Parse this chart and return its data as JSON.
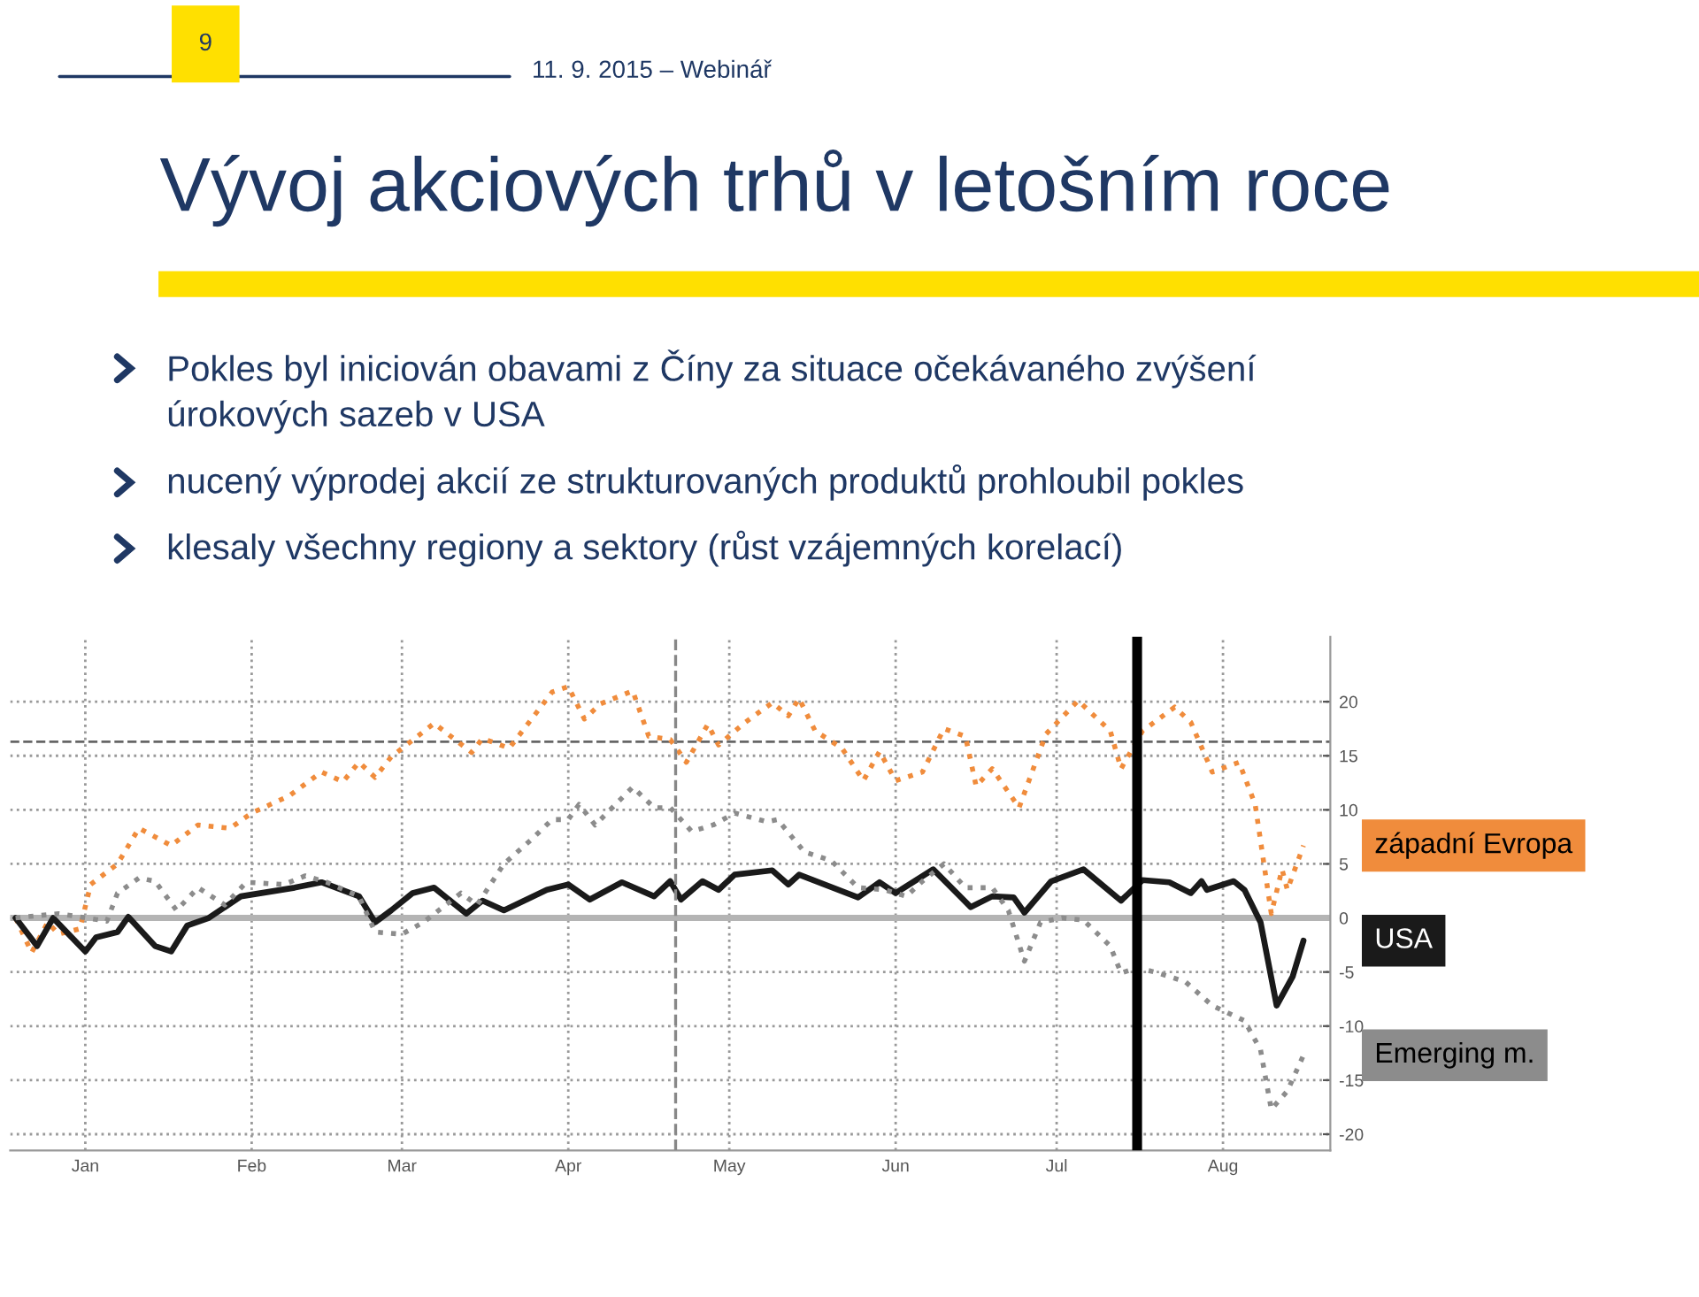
{
  "chart_data": {
    "type": "line",
    "title": "Vývoj akciových trhů v letošním roce",
    "annotations": [
      "9",
      "11. 9. 2015 – Webinář",
      "Pokles byl iniciován obavami z Číny za situace očekávaného zvýšení\núrokových sazeb v USA",
      "nucený výprodej akcií ze strukturovaných produktů prohloubil pokles",
      "klesaly všechny regiony a sektory (růst vzájemných korelací)"
    ],
    "series": [
      {
        "name": "západní Evropa",
        "color": "#f08c3c",
        "line_style": "dotted",
        "x": [
          "2015-01-02",
          "2015-01-05",
          "2015-01-08",
          "2015-01-10",
          "2015-01-14",
          "2015-01-16",
          "2015-01-21",
          "2015-01-25",
          "2015-01-31",
          "2015-02-05",
          "2015-02-11",
          "2015-02-15",
          "2015-02-22",
          "2015-02-28",
          "2015-03-04",
          "2015-03-07",
          "2015-03-10",
          "2015-03-13",
          "2015-03-21",
          "2015-03-28",
          "2015-03-30",
          "2015-04-04",
          "2015-04-12",
          "2015-04-15",
          "2015-04-18",
          "2015-04-21",
          "2015-04-27",
          "2015-04-30",
          "2015-05-04",
          "2015-05-07",
          "2015-05-11",
          "2015-05-13",
          "2015-05-18",
          "2015-05-23",
          "2015-05-26",
          "2015-05-28",
          "2015-05-31",
          "2015-06-05",
          "2015-06-09",
          "2015-06-12",
          "2015-06-15",
          "2015-06-20",
          "2015-06-24",
          "2015-06-28",
          "2015-06-30",
          "2015-07-03",
          "2015-07-08",
          "2015-07-13",
          "2015-07-19",
          "2015-07-25",
          "2015-07-27",
          "2015-07-31",
          "2015-08-06",
          "2015-08-09",
          "2015-08-13",
          "2015-08-18",
          "2015-08-21",
          "2015-08-24",
          "2015-08-26",
          "2015-08-27",
          "2015-08-30"
        ],
        "values": [
          0,
          -3.2,
          -0.4,
          -1.5,
          -1,
          3.1,
          5,
          8.3,
          6.7,
          8.6,
          8.3,
          9.7,
          11.3,
          13.5,
          12.6,
          14.4,
          13,
          14.9,
          18,
          15.3,
          16.6,
          15.7,
          20.9,
          21.4,
          18.4,
          19.8,
          21,
          16.8,
          16.5,
          14.4,
          17.9,
          16,
          18.1,
          19.9,
          18.7,
          20.3,
          17.3,
          15.7,
          12.7,
          15.4,
          12.7,
          13.5,
          17.5,
          16.8,
          12.2,
          13.8,
          10.2,
          17,
          20.1,
          17.3,
          13.8,
          17.3,
          19.5,
          18.1,
          13.5,
          14.4,
          10.5,
          0.4,
          4.5,
          2.6,
          6.7
        ]
      },
      {
        "name": "USA",
        "color": "#1a1a1a",
        "line_style": "solid",
        "x": [
          "2015-01-02",
          "2015-01-06",
          "2015-01-09",
          "2015-01-15",
          "2015-01-17",
          "2015-01-21",
          "2015-01-23",
          "2015-01-28",
          "2015-01-31",
          "2015-02-03",
          "2015-02-07",
          "2015-02-13",
          "2015-02-23",
          "2015-02-28",
          "2015-03-07",
          "2015-03-10",
          "2015-03-13",
          "2015-03-17",
          "2015-03-21",
          "2015-03-27",
          "2015-03-30",
          "2015-04-03",
          "2015-04-11",
          "2015-04-15",
          "2015-04-19",
          "2015-04-25",
          "2015-05-01",
          "2015-05-04",
          "2015-05-06",
          "2015-05-10",
          "2015-05-13",
          "2015-05-16",
          "2015-05-23",
          "2015-05-26",
          "2015-05-28",
          "2015-06-08",
          "2015-06-12",
          "2015-06-15",
          "2015-06-22",
          "2015-06-29",
          "2015-07-03",
          "2015-07-07",
          "2015-07-09",
          "2015-07-14",
          "2015-07-20",
          "2015-07-27",
          "2015-07-31",
          "2015-08-05",
          "2015-08-09",
          "2015-08-11",
          "2015-08-12",
          "2015-08-17",
          "2015-08-19",
          "2015-08-22",
          "2015-08-25",
          "2015-08-28",
          "2015-08-30"
        ],
        "values": [
          0,
          -2.6,
          0,
          -3.1,
          -1.8,
          -1.3,
          0.1,
          -2.6,
          -3.1,
          -0.7,
          0,
          2,
          2.8,
          3.3,
          2,
          -0.4,
          0.7,
          2.3,
          2.8,
          0.4,
          1.6,
          0.7,
          2.6,
          3.1,
          1.7,
          3.3,
          2,
          3.4,
          1.7,
          3.4,
          2.6,
          4,
          4.4,
          3.1,
          4,
          1.9,
          3.3,
          2.3,
          4.5,
          1,
          2,
          1.9,
          0.5,
          3.4,
          4.5,
          1.6,
          3.5,
          3.3,
          2.3,
          3.4,
          2.6,
          3.4,
          2.6,
          -0.4,
          -8.1,
          -5.4,
          -2.1
        ]
      },
      {
        "name": "Emerging m.",
        "color": "#8c8c8c",
        "line_style": "dotted",
        "x": [
          "2015-01-02",
          "2015-01-10",
          "2015-01-14",
          "2015-01-19",
          "2015-01-21",
          "2015-01-25",
          "2015-01-28",
          "2015-02-01",
          "2015-02-05",
          "2015-02-10",
          "2015-02-14",
          "2015-02-21",
          "2015-02-25",
          "2015-03-01",
          "2015-03-07",
          "2015-03-10",
          "2015-03-15",
          "2015-03-19",
          "2015-03-26",
          "2015-03-29",
          "2015-04-03",
          "2015-04-08",
          "2015-04-12",
          "2015-04-15",
          "2015-04-17",
          "2015-04-20",
          "2015-04-27",
          "2015-05-01",
          "2015-05-04",
          "2015-05-08",
          "2015-05-12",
          "2015-05-16",
          "2015-05-22",
          "2015-05-24",
          "2015-05-29",
          "2015-06-03",
          "2015-06-08",
          "2015-06-13",
          "2015-06-17",
          "2015-06-20",
          "2015-06-24",
          "2015-06-28",
          "2015-07-03",
          "2015-07-06",
          "2015-07-09",
          "2015-07-12",
          "2015-07-16",
          "2015-07-20",
          "2015-07-25",
          "2015-07-27",
          "2015-07-30",
          "2015-08-03",
          "2015-08-08",
          "2015-08-13",
          "2015-08-19",
          "2015-08-22",
          "2015-08-24",
          "2015-08-27",
          "2015-08-30"
        ],
        "values": [
          0,
          0.4,
          0.1,
          -0.3,
          2.3,
          3.7,
          3.4,
          0.7,
          2.8,
          1.2,
          3.3,
          3.1,
          3.9,
          3.3,
          2,
          -1.3,
          -1.5,
          -0.4,
          2.3,
          1.2,
          5,
          7.2,
          9.1,
          9.1,
          10.5,
          8.6,
          12.1,
          10.2,
          10.2,
          8,
          8.6,
          9.7,
          8.9,
          9.1,
          6.1,
          5.3,
          2.8,
          2.6,
          2,
          3.4,
          5,
          2.8,
          2.8,
          0.7,
          -4,
          -0.4,
          0,
          -0.2,
          -2.6,
          -5.1,
          -4.6,
          -5.1,
          -5.9,
          -8.1,
          -9.5,
          -12.2,
          -17.7,
          -16,
          -12.7
        ]
      }
    ],
    "xlim": [
      "2015-01-01",
      "2015-09-04"
    ],
    "xticks": [
      {
        "value": "2015-01-15",
        "label": "Jan"
      },
      {
        "value": "2015-02-15",
        "label": "Feb"
      },
      {
        "value": "2015-03-15",
        "label": "Mar"
      },
      {
        "value": "2015-04-15",
        "label": "Apr"
      },
      {
        "value": "2015-05-15",
        "label": "May"
      },
      {
        "value": "2015-06-15",
        "label": "Jun"
      },
      {
        "value": "2015-07-15",
        "label": "Jul"
      },
      {
        "value": "2015-08-15",
        "label": "Aug"
      }
    ],
    "ylim": [
      -21.5,
      26
    ],
    "yticks": [
      -20,
      -15,
      -10,
      -5,
      0,
      5,
      10,
      15,
      20
    ],
    "ref_lines": [
      {
        "axis": "y",
        "value": 0,
        "color": "#b4b4b4",
        "line_style": "solid"
      },
      {
        "axis": "y",
        "value": 16.3,
        "color": "#666666",
        "line_style": "dashed"
      },
      {
        "axis": "x",
        "value": "2015-05-05",
        "color": "#888888",
        "line_style": "dashed"
      },
      {
        "axis": "x",
        "value": "2015-07-30",
        "color": "#000000",
        "line_style": "solid"
      }
    ],
    "grid": true,
    "legend": "right",
    "marker": "none"
  }
}
